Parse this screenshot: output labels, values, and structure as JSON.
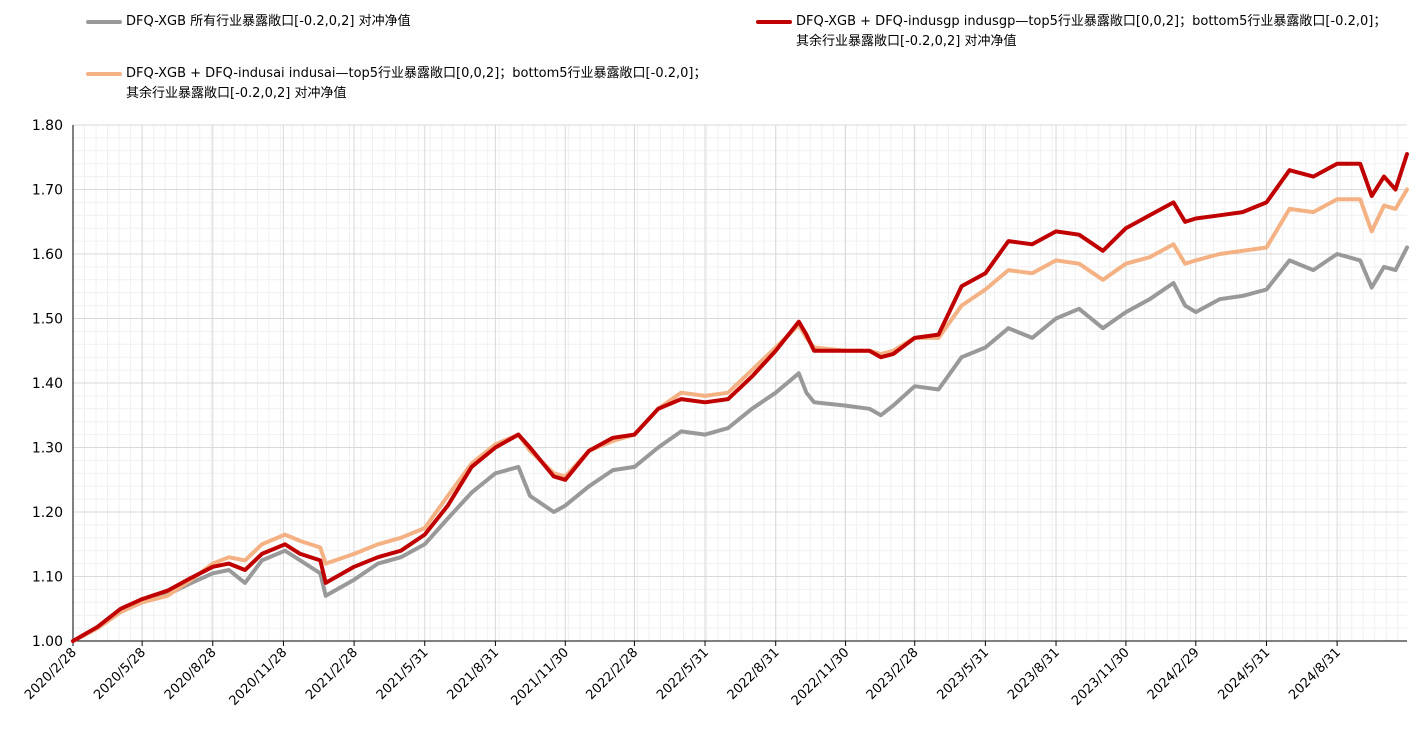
{
  "chart_data": {
    "type": "line",
    "title": "",
    "xlabel": "",
    "ylabel": "",
    "ylim": [
      1.0,
      1.8
    ],
    "yticks": [
      "1.00",
      "1.10",
      "1.20",
      "1.30",
      "1.40",
      "1.50",
      "1.60",
      "1.70",
      "1.80"
    ],
    "xticks": [
      "2020/2/28",
      "2020/5/28",
      "2020/8/28",
      "2020/11/28",
      "2021/2/28",
      "2021/5/31",
      "2021/8/31",
      "2021/11/30",
      "2022/2/28",
      "2022/5/31",
      "2022/8/31",
      "2022/11/30",
      "2023/2/28",
      "2023/5/31",
      "2023/8/31",
      "2023/11/30",
      "2024/2/29",
      "2024/5/31",
      "2024/8/31"
    ],
    "x_start": "2020-02-28",
    "x_end": "2024-11-30",
    "grid": true,
    "legend_position": "top",
    "series": [
      {
        "name": "DFQ-XGB 所有行业暴露敞口[-0.2,0,2] 对冲净值",
        "color": "#999999",
        "points": [
          [
            "2020-02-28",
            1.0
          ],
          [
            "2020-03-31",
            1.02
          ],
          [
            "2020-04-30",
            1.045
          ],
          [
            "2020-05-28",
            1.06
          ],
          [
            "2020-06-30",
            1.072
          ],
          [
            "2020-07-31",
            1.09
          ],
          [
            "2020-08-28",
            1.105
          ],
          [
            "2020-09-18",
            1.11
          ],
          [
            "2020-10-09",
            1.09
          ],
          [
            "2020-10-31",
            1.125
          ],
          [
            "2020-11-30",
            1.14
          ],
          [
            "2020-12-20",
            1.125
          ],
          [
            "2021-01-15",
            1.105
          ],
          [
            "2021-01-22",
            1.07
          ],
          [
            "2021-02-28",
            1.095
          ],
          [
            "2021-03-31",
            1.12
          ],
          [
            "2021-04-30",
            1.13
          ],
          [
            "2021-05-31",
            1.15
          ],
          [
            "2021-06-30",
            1.19
          ],
          [
            "2021-07-31",
            1.23
          ],
          [
            "2021-08-31",
            1.26
          ],
          [
            "2021-09-30",
            1.27
          ],
          [
            "2021-10-15",
            1.225
          ],
          [
            "2021-11-15",
            1.2
          ],
          [
            "2021-11-30",
            1.21
          ],
          [
            "2021-12-31",
            1.24
          ],
          [
            "2022-01-31",
            1.265
          ],
          [
            "2022-02-28",
            1.27
          ],
          [
            "2022-03-31",
            1.3
          ],
          [
            "2022-04-30",
            1.325
          ],
          [
            "2022-05-31",
            1.32
          ],
          [
            "2022-06-30",
            1.33
          ],
          [
            "2022-07-31",
            1.36
          ],
          [
            "2022-08-31",
            1.385
          ],
          [
            "2022-09-30",
            1.415
          ],
          [
            "2022-10-10",
            1.385
          ],
          [
            "2022-10-20",
            1.37
          ],
          [
            "2022-11-30",
            1.365
          ],
          [
            "2022-12-31",
            1.36
          ],
          [
            "2023-01-15",
            1.35
          ],
          [
            "2023-01-31",
            1.365
          ],
          [
            "2023-02-28",
            1.395
          ],
          [
            "2023-03-31",
            1.39
          ],
          [
            "2023-04-30",
            1.44
          ],
          [
            "2023-05-31",
            1.455
          ],
          [
            "2023-06-30",
            1.485
          ],
          [
            "2023-07-31",
            1.47
          ],
          [
            "2023-08-31",
            1.5
          ],
          [
            "2023-09-30",
            1.515
          ],
          [
            "2023-10-31",
            1.485
          ],
          [
            "2023-11-30",
            1.51
          ],
          [
            "2023-12-31",
            1.53
          ],
          [
            "2024-01-31",
            1.555
          ],
          [
            "2024-02-15",
            1.52
          ],
          [
            "2024-02-29",
            1.51
          ],
          [
            "2024-03-31",
            1.53
          ],
          [
            "2024-04-30",
            1.535
          ],
          [
            "2024-05-31",
            1.545
          ],
          [
            "2024-06-30",
            1.59
          ],
          [
            "2024-07-31",
            1.575
          ],
          [
            "2024-08-31",
            1.6
          ],
          [
            "2024-09-30",
            1.59
          ],
          [
            "2024-10-15",
            1.548
          ],
          [
            "2024-10-31",
            1.58
          ],
          [
            "2024-11-15",
            1.575
          ],
          [
            "2024-11-30",
            1.61
          ]
        ]
      },
      {
        "name": "DFQ-XGB + DFQ-indusgp indusgp—top5行业暴露敞口[0,0,2]；bottom5行业暴露敞口[-0.2,0]；\n其余行业暴露敞口[-0.2,0,2] 对冲净值",
        "color": "#c00000",
        "points": [
          [
            "2020-02-28",
            1.0
          ],
          [
            "2020-03-31",
            1.022
          ],
          [
            "2020-04-30",
            1.05
          ],
          [
            "2020-05-28",
            1.065
          ],
          [
            "2020-06-30",
            1.078
          ],
          [
            "2020-07-31",
            1.098
          ],
          [
            "2020-08-28",
            1.115
          ],
          [
            "2020-09-18",
            1.12
          ],
          [
            "2020-10-09",
            1.11
          ],
          [
            "2020-10-31",
            1.135
          ],
          [
            "2020-11-30",
            1.15
          ],
          [
            "2020-12-20",
            1.135
          ],
          [
            "2021-01-15",
            1.125
          ],
          [
            "2021-01-22",
            1.09
          ],
          [
            "2021-02-28",
            1.115
          ],
          [
            "2021-03-31",
            1.13
          ],
          [
            "2021-04-30",
            1.14
          ],
          [
            "2021-05-31",
            1.165
          ],
          [
            "2021-06-30",
            1.21
          ],
          [
            "2021-07-31",
            1.27
          ],
          [
            "2021-08-31",
            1.3
          ],
          [
            "2021-09-30",
            1.32
          ],
          [
            "2021-10-15",
            1.3
          ],
          [
            "2021-11-15",
            1.255
          ],
          [
            "2021-11-30",
            1.25
          ],
          [
            "2021-12-31",
            1.295
          ],
          [
            "2022-01-31",
            1.315
          ],
          [
            "2022-02-28",
            1.32
          ],
          [
            "2022-03-31",
            1.36
          ],
          [
            "2022-04-30",
            1.375
          ],
          [
            "2022-05-31",
            1.37
          ],
          [
            "2022-06-30",
            1.375
          ],
          [
            "2022-07-31",
            1.41
          ],
          [
            "2022-08-31",
            1.45
          ],
          [
            "2022-09-30",
            1.495
          ],
          [
            "2022-10-10",
            1.475
          ],
          [
            "2022-10-20",
            1.45
          ],
          [
            "2022-11-30",
            1.45
          ],
          [
            "2022-12-31",
            1.45
          ],
          [
            "2023-01-15",
            1.44
          ],
          [
            "2023-01-31",
            1.445
          ],
          [
            "2023-02-28",
            1.47
          ],
          [
            "2023-03-31",
            1.475
          ],
          [
            "2023-04-30",
            1.55
          ],
          [
            "2023-05-31",
            1.57
          ],
          [
            "2023-06-30",
            1.62
          ],
          [
            "2023-07-31",
            1.615
          ],
          [
            "2023-08-31",
            1.635
          ],
          [
            "2023-09-30",
            1.63
          ],
          [
            "2023-10-31",
            1.605
          ],
          [
            "2023-11-30",
            1.64
          ],
          [
            "2023-12-31",
            1.66
          ],
          [
            "2024-01-31",
            1.68
          ],
          [
            "2024-02-15",
            1.65
          ],
          [
            "2024-02-29",
            1.655
          ],
          [
            "2024-03-31",
            1.66
          ],
          [
            "2024-04-30",
            1.665
          ],
          [
            "2024-05-31",
            1.68
          ],
          [
            "2024-06-30",
            1.73
          ],
          [
            "2024-07-31",
            1.72
          ],
          [
            "2024-08-31",
            1.74
          ],
          [
            "2024-09-30",
            1.74
          ],
          [
            "2024-10-15",
            1.69
          ],
          [
            "2024-10-31",
            1.72
          ],
          [
            "2024-11-15",
            1.7
          ],
          [
            "2024-11-30",
            1.755
          ]
        ]
      },
      {
        "name": "DFQ-XGB + DFQ-indusai indusai—top5行业暴露敞口[0,0,2]；bottom5行业暴露敞口[-0.2,0]；\n其余行业暴露敞口[-0.2,0,2] 对冲净值",
        "color": "#f4b183",
        "points": [
          [
            "2020-02-28",
            1.0
          ],
          [
            "2020-03-31",
            1.02
          ],
          [
            "2020-04-30",
            1.045
          ],
          [
            "2020-05-28",
            1.06
          ],
          [
            "2020-06-30",
            1.07
          ],
          [
            "2020-07-31",
            1.095
          ],
          [
            "2020-08-28",
            1.12
          ],
          [
            "2020-09-18",
            1.13
          ],
          [
            "2020-10-09",
            1.125
          ],
          [
            "2020-10-31",
            1.15
          ],
          [
            "2020-11-30",
            1.165
          ],
          [
            "2020-12-20",
            1.155
          ],
          [
            "2021-01-15",
            1.145
          ],
          [
            "2021-01-22",
            1.12
          ],
          [
            "2021-02-28",
            1.135
          ],
          [
            "2021-03-31",
            1.15
          ],
          [
            "2021-04-30",
            1.16
          ],
          [
            "2021-05-31",
            1.175
          ],
          [
            "2021-06-30",
            1.225
          ],
          [
            "2021-07-31",
            1.275
          ],
          [
            "2021-08-31",
            1.305
          ],
          [
            "2021-09-30",
            1.32
          ],
          [
            "2021-10-15",
            1.295
          ],
          [
            "2021-11-15",
            1.26
          ],
          [
            "2021-11-30",
            1.255
          ],
          [
            "2021-12-31",
            1.295
          ],
          [
            "2022-01-31",
            1.31
          ],
          [
            "2022-02-28",
            1.32
          ],
          [
            "2022-03-31",
            1.36
          ],
          [
            "2022-04-30",
            1.385
          ],
          [
            "2022-05-31",
            1.38
          ],
          [
            "2022-06-30",
            1.385
          ],
          [
            "2022-07-31",
            1.42
          ],
          [
            "2022-08-31",
            1.455
          ],
          [
            "2022-09-30",
            1.49
          ],
          [
            "2022-10-10",
            1.47
          ],
          [
            "2022-10-20",
            1.455
          ],
          [
            "2022-11-30",
            1.45
          ],
          [
            "2022-12-31",
            1.45
          ],
          [
            "2023-01-15",
            1.445
          ],
          [
            "2023-01-31",
            1.45
          ],
          [
            "2023-02-28",
            1.47
          ],
          [
            "2023-03-31",
            1.47
          ],
          [
            "2023-04-30",
            1.52
          ],
          [
            "2023-05-31",
            1.545
          ],
          [
            "2023-06-30",
            1.575
          ],
          [
            "2023-07-31",
            1.57
          ],
          [
            "2023-08-31",
            1.59
          ],
          [
            "2023-09-30",
            1.585
          ],
          [
            "2023-10-31",
            1.56
          ],
          [
            "2023-11-30",
            1.585
          ],
          [
            "2023-12-31",
            1.595
          ],
          [
            "2024-01-31",
            1.615
          ],
          [
            "2024-02-15",
            1.585
          ],
          [
            "2024-02-29",
            1.59
          ],
          [
            "2024-03-31",
            1.6
          ],
          [
            "2024-04-30",
            1.605
          ],
          [
            "2024-05-31",
            1.61
          ],
          [
            "2024-06-30",
            1.67
          ],
          [
            "2024-07-31",
            1.665
          ],
          [
            "2024-08-31",
            1.685
          ],
          [
            "2024-09-30",
            1.685
          ],
          [
            "2024-10-15",
            1.635
          ],
          [
            "2024-10-31",
            1.675
          ],
          [
            "2024-11-15",
            1.67
          ],
          [
            "2024-11-30",
            1.7
          ]
        ]
      }
    ]
  }
}
